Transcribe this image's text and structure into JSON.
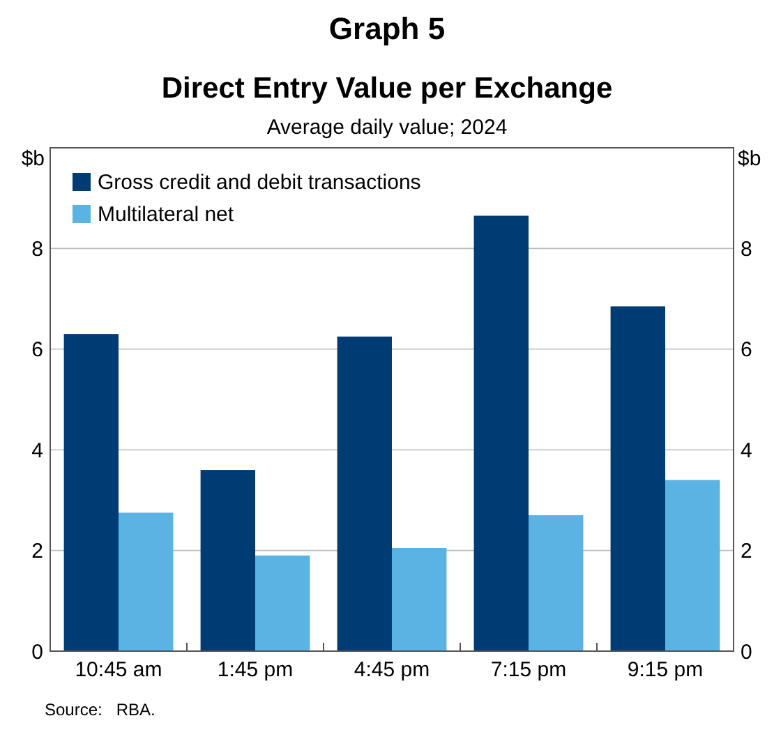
{
  "chart_data": {
    "type": "bar",
    "title": "Direct Entry Value per Exchange",
    "subtitle": "Average daily value; 2024",
    "ylabel": "$b",
    "y2label": "$b",
    "annotations": [
      "Graph 5",
      "Source:   RBA."
    ],
    "categories": [
      "10:45 am",
      "1:45 pm",
      "4:45 pm",
      "7:15 pm",
      "9:15 pm"
    ],
    "series": [
      {
        "name": "Gross credit and debit transactions",
        "color": "#003c74",
        "values": [
          6.3,
          3.6,
          6.25,
          8.65,
          6.85
        ]
      },
      {
        "name": "Multilateral net",
        "color": "#5bb3e3",
        "values": [
          2.75,
          1.9,
          2.05,
          2.7,
          3.4
        ]
      }
    ],
    "ylim": [
      0,
      10
    ],
    "yticks": [
      0,
      2,
      4,
      6,
      8
    ],
    "y2lim": [
      0,
      10
    ],
    "y2ticks": [
      0,
      2,
      4,
      6,
      8
    ],
    "grid": "y",
    "legend": "top left"
  }
}
